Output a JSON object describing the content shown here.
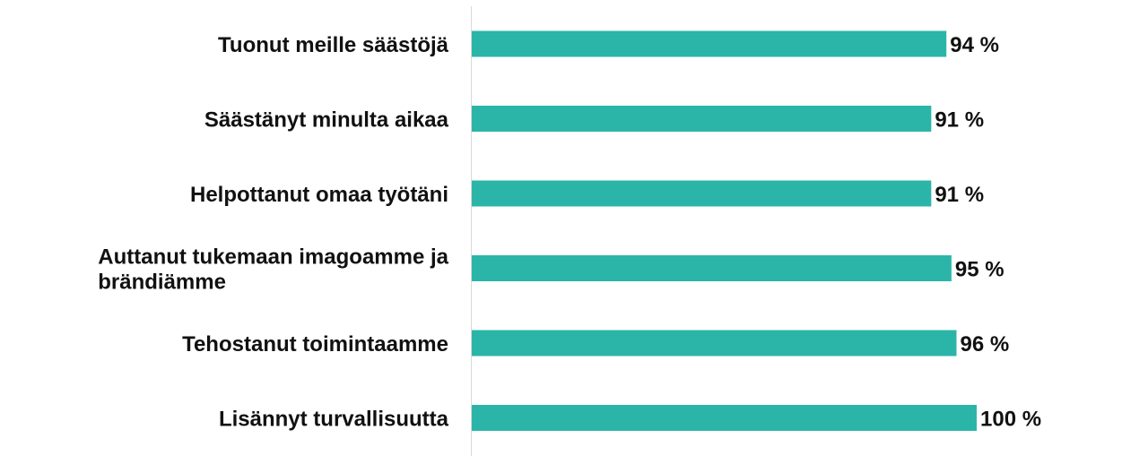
{
  "chart_data": {
    "type": "bar",
    "orientation": "horizontal",
    "categories": [
      [
        "Tuonut meille säästöjä"
      ],
      [
        "Säästänyt minulta aikaa"
      ],
      [
        "Helpottanut omaa työtäni"
      ],
      [
        "Auttanut tukemaan imagoamme ja",
        "brändiämme"
      ],
      [
        "Tehostanut toimintaamme"
      ],
      [
        "Lisännyt turvallisuutta"
      ]
    ],
    "values": [
      94,
      91,
      91,
      95,
      96,
      100
    ],
    "value_labels": [
      "94 %",
      "91 %",
      "91 %",
      "95 %",
      "96 %",
      "100 %"
    ],
    "xlim": [
      0,
      100
    ],
    "grid": false,
    "bar_color": "#2bb5a8",
    "axis_color": "#d9d9d9"
  }
}
